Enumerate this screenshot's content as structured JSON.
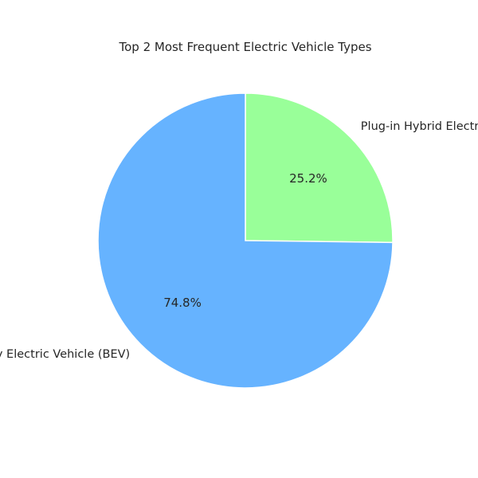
{
  "chart_data": {
    "type": "pie",
    "title": "Top 2 Most Frequent Electric Vehicle Types",
    "categories": [
      "Plug-in Hybrid Electric Vehicle (PHEV)",
      "Battery Electric Vehicle (BEV)"
    ],
    "values": [
      25.2,
      74.8
    ],
    "value_labels": [
      "25.2%",
      "74.8%"
    ],
    "colors": [
      "#99ff99",
      "#66b3ff"
    ],
    "start_angle_deg": 90,
    "direction": "clockwise",
    "legend": "none"
  }
}
